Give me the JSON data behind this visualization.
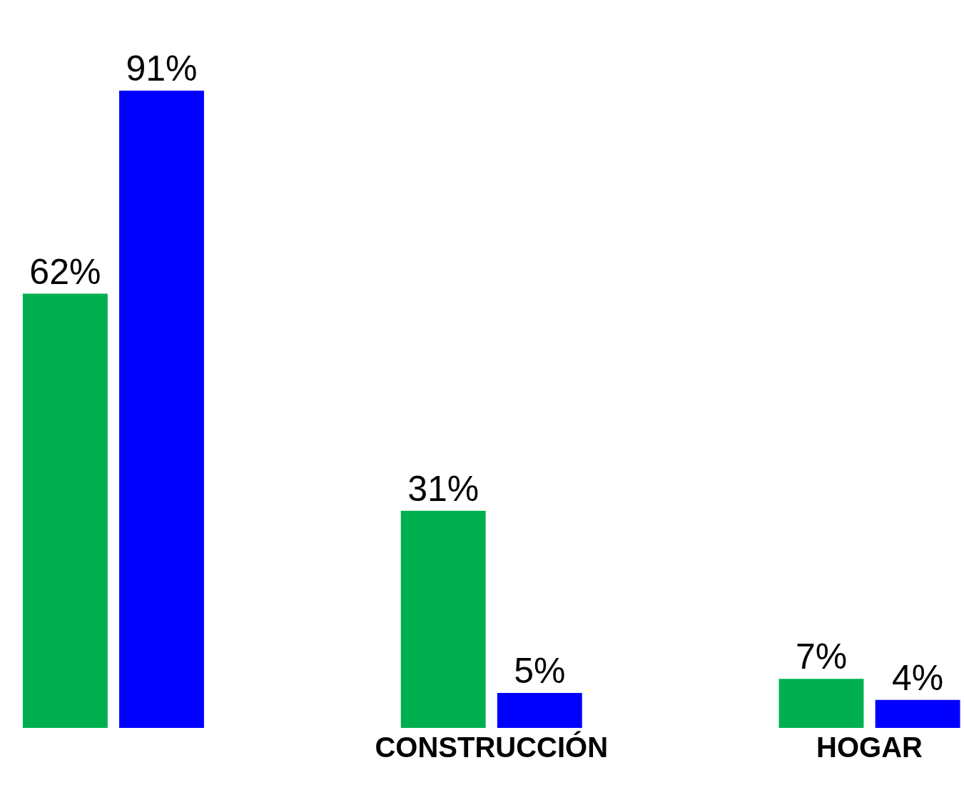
{
  "chart_data": {
    "type": "bar",
    "categories": [
      null,
      "CONSTRUCCIÓN",
      "HOGAR"
    ],
    "series": [
      {
        "color": "#00b050",
        "values": [
          62,
          31,
          7
        ],
        "value_labels": [
          "62%",
          "31%",
          "7%"
        ]
      },
      {
        "color": "#0000ff",
        "values": [
          91,
          5,
          4
        ],
        "value_labels": [
          "91%",
          "5%",
          "4%"
        ]
      }
    ],
    "legend": false
  }
}
